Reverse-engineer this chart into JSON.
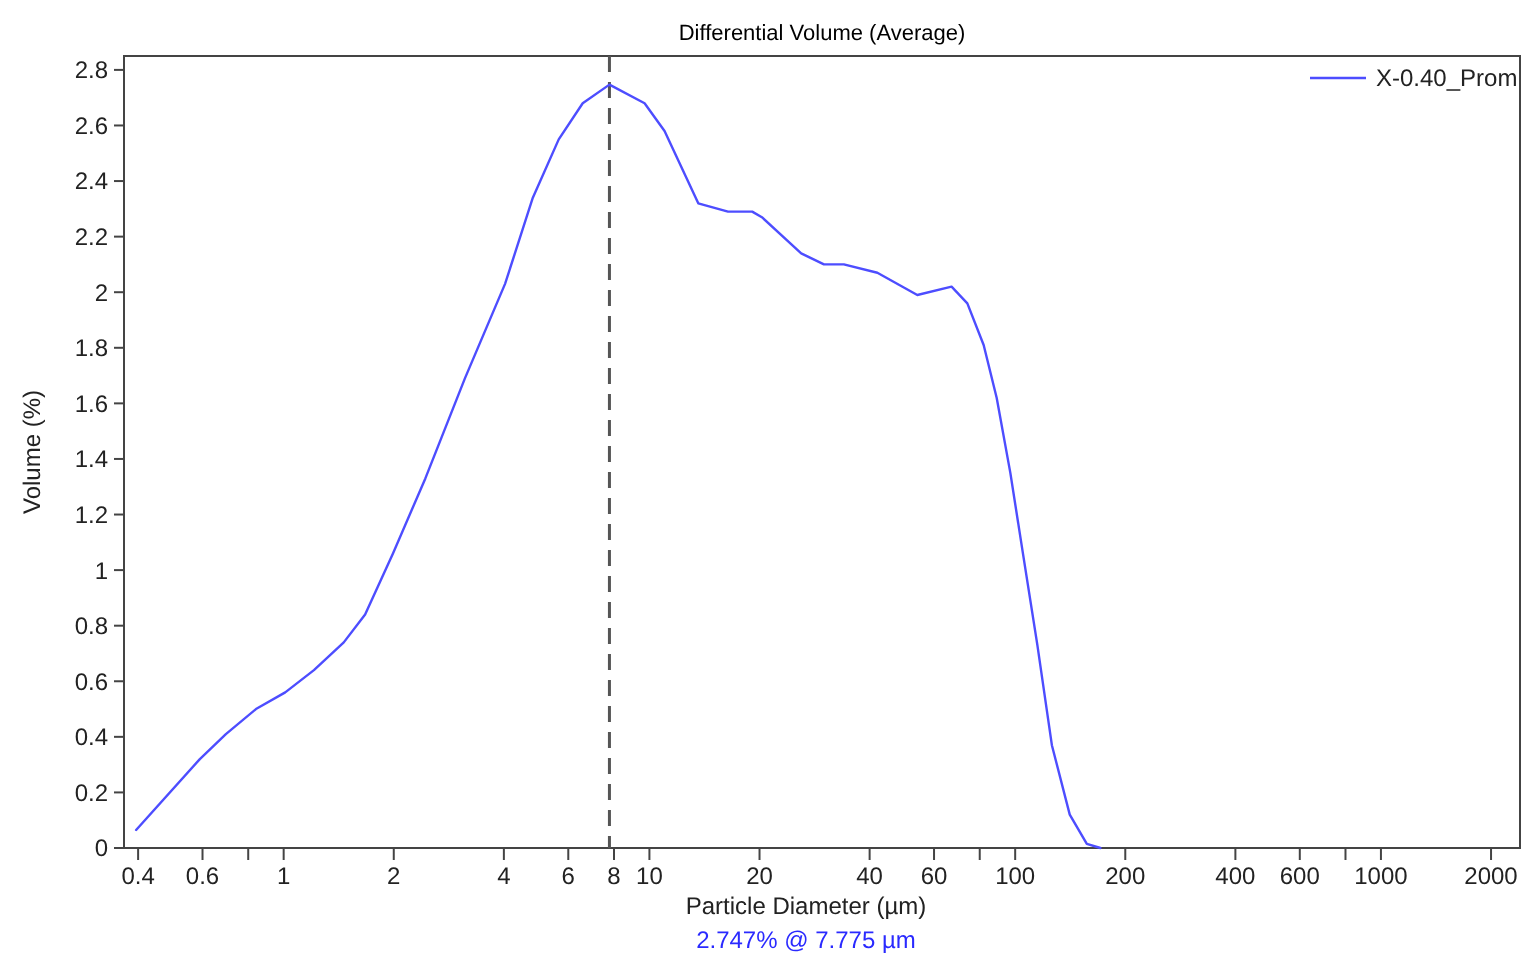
{
  "chart_data": {
    "type": "line",
    "title": "Differential Volume (Average)",
    "xlabel": "Particle Diameter (µm)",
    "ylabel": "Volume (%)",
    "log": "x",
    "xlim": [
      0.366,
      2400
    ],
    "ylim": [
      0,
      2.85
    ],
    "xticks": [
      0.4,
      0.6,
      {
        "value": 0.8,
        "label": null
      },
      1,
      2,
      4,
      6,
      8,
      10,
      20,
      40,
      60,
      {
        "value": 80,
        "label": null
      },
      100,
      200,
      400,
      600,
      {
        "value": 800,
        "label": null
      },
      1000,
      2000
    ],
    "yticks": [
      0,
      0.2,
      0.4,
      0.6,
      0.8,
      1,
      1.2,
      1.4,
      1.6,
      1.8,
      2,
      2.2,
      2.4,
      2.6,
      2.8
    ],
    "grid": false,
    "legend": "top right",
    "marker": "none",
    "line_style": "solid",
    "ref_lines": [
      {
        "axis": "x",
        "value": 7.775,
        "color": "#555555",
        "line_style": "dashed"
      }
    ],
    "annotations": [
      "2.747% @ 7.775 µm"
    ],
    "series": [
      {
        "name": "X-0.40_Prom",
        "color": "#4d4dff",
        "x": [
          0.395,
          0.59,
          0.695,
          0.84,
          1.01,
          1.21,
          1.46,
          1.67,
          1.99,
          2.44,
          3.13,
          4.03,
          4.8,
          5.65,
          6.57,
          7.775,
          9.7,
          11,
          13.6,
          16.4,
          19.1,
          20.3,
          26,
          30,
          34,
          42,
          54,
          67,
          74,
          82,
          89,
          97,
          105,
          115,
          126,
          141,
          157,
          171
        ],
        "values": [
          0.065,
          0.32,
          0.41,
          0.5,
          0.56,
          0.64,
          0.74,
          0.84,
          1.06,
          1.33,
          1.69,
          2.03,
          2.34,
          2.55,
          2.68,
          2.747,
          2.68,
          2.58,
          2.32,
          2.29,
          2.29,
          2.27,
          2.14,
          2.1,
          2.1,
          2.07,
          1.99,
          2.02,
          1.96,
          1.81,
          1.62,
          1.35,
          1.06,
          0.73,
          0.37,
          0.12,
          0.015,
          0
        ]
      }
    ]
  }
}
